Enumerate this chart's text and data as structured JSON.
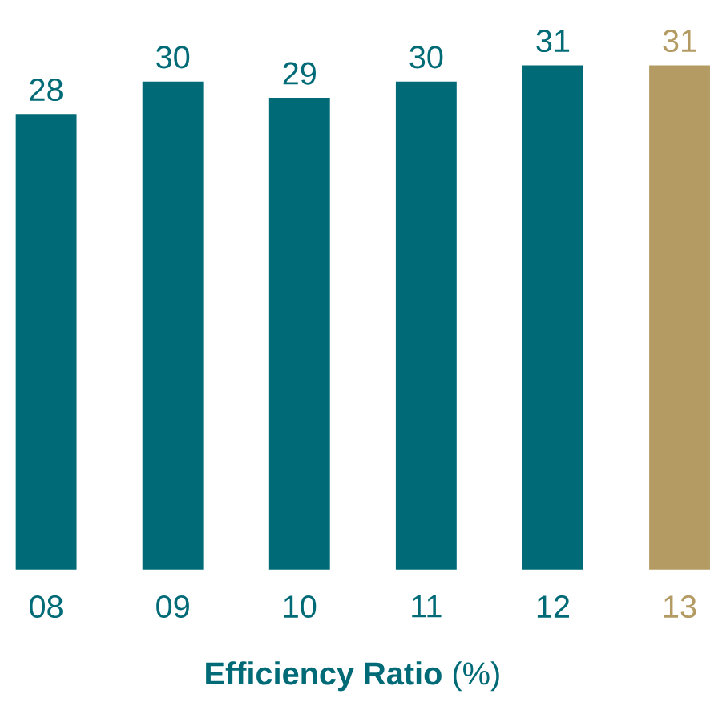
{
  "chart_data": {
    "type": "bar",
    "xlabel": "**Efficiency Ratio** (%)",
    "categories": [
      "08",
      "09",
      "10",
      "11",
      "12",
      "13"
    ],
    "values": [
      28,
      30,
      29,
      30,
      31,
      31
    ],
    "colors": [
      "#006b77",
      "#006b77",
      "#006b77",
      "#006b77",
      "#006b77",
      "#b39b63"
    ],
    "data_labels": true
  }
}
